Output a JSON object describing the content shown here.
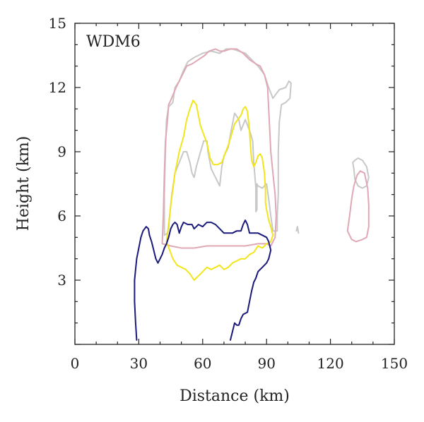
{
  "chart_data": {
    "type": "line",
    "panel_label": "WDM6",
    "xlabel": "Distance (km)",
    "ylabel": "Height (km)",
    "xlim": [
      0,
      150
    ],
    "ylim": [
      0,
      15
    ],
    "xticks": [
      "0",
      "30",
      "60",
      "90",
      "120",
      "150"
    ],
    "yticks": [
      "3",
      "6",
      "9",
      "12",
      "15"
    ],
    "grid": false,
    "legend": "none",
    "series": [
      {
        "color": "#c8c8c8",
        "lines": [
          [
            [
              42,
              5.1
            ],
            [
              42,
              7
            ],
            [
              42.5,
              9
            ],
            [
              43,
              10.5
            ],
            [
              44,
              11.1
            ],
            [
              46,
              11.3
            ],
            [
              47,
              12
            ],
            [
              49,
              12.3
            ],
            [
              51,
              12.8
            ],
            [
              53,
              13.2
            ],
            [
              56,
              13.4
            ],
            [
              60,
              13.6
            ],
            [
              64,
              13.7
            ],
            [
              68,
              13.6
            ],
            [
              71,
              13.8
            ],
            [
              74,
              13.8
            ],
            [
              77,
              13.7
            ],
            [
              80,
              13.6
            ],
            [
              83,
              13.3
            ],
            [
              86,
              13
            ],
            [
              89,
              12.6
            ],
            [
              91,
              12
            ],
            [
              93,
              11.5
            ],
            [
              96,
              11.9
            ],
            [
              99,
              12
            ],
            [
              100.5,
              12.3
            ],
            [
              101.5,
              12.2
            ],
            [
              101,
              11.5
            ],
            [
              99,
              11.3
            ],
            [
              97,
              11.2
            ],
            [
              96,
              10.4
            ],
            [
              95.5,
              9
            ],
            [
              95.5,
              8
            ],
            [
              95.5,
              7
            ],
            [
              95,
              6
            ],
            [
              95,
              5.3
            ],
            [
              93,
              5.3
            ],
            [
              92,
              6
            ],
            [
              91,
              6.8
            ],
            [
              90,
              7.5
            ],
            [
              88,
              7.3
            ],
            [
              86,
              7.4
            ],
            [
              85.5,
              7.5
            ],
            [
              85.5,
              6.3
            ],
            [
              85,
              6.2
            ],
            [
              85,
              7.3
            ],
            [
              84,
              8.5
            ],
            [
              83.5,
              9.5
            ],
            [
              82,
              10
            ],
            [
              80,
              10.5
            ],
            [
              78,
              10
            ],
            [
              77,
              10.5
            ],
            [
              75,
              10.8
            ],
            [
              73,
              9.8
            ],
            [
              72,
              9.2
            ],
            [
              71,
              9
            ],
            [
              70,
              8.8
            ],
            [
              69,
              8.3
            ],
            [
              68,
              7.4
            ],
            [
              66,
              7.8
            ],
            [
              64,
              8.2
            ],
            [
              62.5,
              9
            ],
            [
              62,
              9.5
            ],
            [
              60.5,
              9.5
            ],
            [
              59,
              9
            ],
            [
              57,
              8.3
            ],
            [
              56,
              7.8
            ],
            [
              55,
              8
            ],
            [
              54,
              8.5
            ],
            [
              52.5,
              9
            ],
            [
              51,
              9
            ],
            [
              49,
              8.5
            ],
            [
              47,
              8
            ],
            [
              45.5,
              7
            ],
            [
              44.5,
              6
            ],
            [
              44,
              5.4
            ],
            [
              43.5,
              5.2
            ],
            [
              42,
              5.1
            ]
          ],
          [
            [
              104,
              5.3
            ],
            [
              104.5,
              5.5
            ],
            [
              105,
              5.2
            ]
          ],
          [
            [
              131,
              8.2
            ],
            [
              130.5,
              8.5
            ],
            [
              131.5,
              8.6
            ],
            [
              133,
              8.7
            ],
            [
              135,
              8.6
            ],
            [
              137,
              8.3
            ],
            [
              138,
              7.8
            ],
            [
              137,
              7.4
            ],
            [
              135,
              7.3
            ],
            [
              133,
              7.4
            ],
            [
              131.5,
              7.7
            ],
            [
              131,
              8.2
            ]
          ]
        ]
      },
      {
        "color": "#e0a8b4",
        "lines": [
          [
            [
              41,
              4.7
            ],
            [
              41.5,
              6
            ],
            [
              42,
              8
            ],
            [
              42.5,
              9.5
            ],
            [
              43.5,
              10.5
            ],
            [
              44,
              11.2
            ],
            [
              45,
              11.4
            ],
            [
              47.5,
              12
            ],
            [
              50,
              12.5
            ],
            [
              52.5,
              13
            ],
            [
              55,
              13.1
            ],
            [
              58,
              13.3
            ],
            [
              61,
              13.5
            ],
            [
              63,
              13.7
            ],
            [
              66,
              13.8
            ],
            [
              68,
              13.7
            ],
            [
              70,
              13.7
            ],
            [
              73,
              13.8
            ],
            [
              76,
              13.8
            ],
            [
              79,
              13.6
            ],
            [
              82,
              13.3
            ],
            [
              85,
              13.1
            ],
            [
              87,
              13
            ],
            [
              89,
              12.6
            ],
            [
              90.5,
              12
            ],
            [
              91,
              11
            ],
            [
              91.5,
              10
            ],
            [
              92,
              9
            ],
            [
              93,
              8
            ],
            [
              94,
              7
            ],
            [
              94.5,
              6
            ],
            [
              94,
              5
            ],
            [
              92,
              4.6
            ],
            [
              90,
              4.7
            ],
            [
              86,
              4.7
            ],
            [
              80,
              4.6
            ],
            [
              74,
              4.6
            ],
            [
              68,
              4.6
            ],
            [
              62,
              4.6
            ],
            [
              56,
              4.5
            ],
            [
              50,
              4.5
            ],
            [
              45,
              4.6
            ],
            [
              41,
              4.7
            ]
          ],
          [
            [
              128,
              5.3
            ],
            [
              129,
              6
            ],
            [
              130,
              6.8
            ],
            [
              131,
              7.4
            ],
            [
              132.5,
              7.9
            ],
            [
              134,
              8.1
            ],
            [
              136,
              8
            ],
            [
              137.5,
              7.3
            ],
            [
              138,
              6.5
            ],
            [
              138,
              5.5
            ],
            [
              137,
              5
            ],
            [
              135,
              4.9
            ],
            [
              132,
              4.8
            ],
            [
              130,
              4.9
            ],
            [
              128,
              5.3
            ]
          ]
        ]
      },
      {
        "color": "#f2e51a",
        "lines": [
          [
            [
              44,
              5.6
            ],
            [
              45,
              6.5
            ],
            [
              47,
              8
            ],
            [
              49,
              9
            ],
            [
              51,
              9.7
            ],
            [
              52.5,
              10.5
            ],
            [
              54,
              11
            ],
            [
              55.5,
              11.4
            ],
            [
              57,
              11.2
            ],
            [
              58,
              10.7
            ],
            [
              59,
              10.2
            ],
            [
              60.5,
              9.8
            ],
            [
              62,
              9.4
            ],
            [
              63.5,
              8.7
            ],
            [
              65,
              8.4
            ],
            [
              67,
              8.4
            ],
            [
              69,
              8.5
            ],
            [
              70.5,
              8.9
            ],
            [
              72,
              9.3
            ],
            [
              73.5,
              9.8
            ],
            [
              75,
              10.3
            ],
            [
              76.5,
              10.5
            ],
            [
              78,
              10.7
            ],
            [
              79,
              11
            ],
            [
              80,
              11.1
            ],
            [
              81,
              10.9
            ],
            [
              82,
              10
            ],
            [
              82.5,
              9.2
            ],
            [
              83,
              8.6
            ],
            [
              84,
              8.3
            ],
            [
              85,
              8.5
            ],
            [
              86,
              8.8
            ],
            [
              87,
              8.9
            ],
            [
              88,
              8.7
            ],
            [
              89,
              8
            ],
            [
              89.5,
              7.2
            ],
            [
              89.5,
              6.6
            ],
            [
              90,
              6.3
            ],
            [
              91,
              5.8
            ],
            [
              92,
              5.5
            ],
            [
              93,
              5.1
            ],
            [
              92,
              4.8
            ],
            [
              90,
              4.7
            ],
            [
              88,
              4.5
            ],
            [
              86,
              4.6
            ],
            [
              84,
              4.3
            ],
            [
              82,
              4.2
            ],
            [
              80,
              4
            ],
            [
              78,
              4
            ],
            [
              76,
              3.9
            ],
            [
              74,
              3.8
            ],
            [
              72,
              3.6
            ],
            [
              70,
              3.5
            ],
            [
              68,
              3.7
            ],
            [
              66,
              3.6
            ],
            [
              64,
              3.5
            ],
            [
              62,
              3.6
            ],
            [
              60,
              3.4
            ],
            [
              58,
              3.2
            ],
            [
              56,
              3
            ],
            [
              54,
              3.3
            ],
            [
              52,
              3.5
            ],
            [
              50,
              3.6
            ],
            [
              48,
              3.7
            ],
            [
              46,
              4
            ],
            [
              44.5,
              4.4
            ],
            [
              43,
              4.8
            ],
            [
              44,
              5.6
            ]
          ]
        ]
      },
      {
        "color": "#1a1a7a",
        "lines": [
          [
            [
              29,
              0.2
            ],
            [
              28.5,
              1
            ],
            [
              28,
              2
            ],
            [
              28,
              3
            ],
            [
              28.5,
              3.5
            ],
            [
              29,
              4
            ],
            [
              30,
              4.5
            ],
            [
              31,
              5
            ],
            [
              32,
              5.3
            ],
            [
              33.5,
              5.5
            ],
            [
              34.5,
              5.4
            ],
            [
              35,
              5.1
            ],
            [
              36,
              4.8
            ],
            [
              37,
              4.4
            ],
            [
              38,
              4
            ],
            [
              39,
              3.8
            ],
            [
              40,
              4
            ],
            [
              41,
              4.2
            ],
            [
              42,
              4.5
            ],
            [
              43,
              4.7
            ],
            [
              44,
              5
            ],
            [
              44.5,
              5.2
            ],
            [
              45,
              5.4
            ],
            [
              46,
              5.6
            ],
            [
              47,
              5.7
            ],
            [
              48,
              5.6
            ],
            [
              49,
              5.2
            ],
            [
              50,
              5.5
            ],
            [
              51,
              5.7
            ],
            [
              53,
              5.6
            ],
            [
              55,
              5.6
            ],
            [
              56,
              5.4
            ],
            [
              57,
              5.5
            ],
            [
              58,
              5.6
            ],
            [
              60,
              5.5
            ],
            [
              61,
              5.6
            ],
            [
              62,
              5.7
            ],
            [
              64,
              5.7
            ],
            [
              66,
              5.6
            ],
            [
              68,
              5.4
            ],
            [
              70,
              5.2
            ],
            [
              72,
              5.2
            ],
            [
              74,
              5.2
            ],
            [
              76,
              5.3
            ],
            [
              78,
              5.3
            ],
            [
              79,
              5.6
            ],
            [
              80,
              5.8
            ],
            [
              81,
              5.6
            ],
            [
              82,
              5.2
            ],
            [
              84,
              5.2
            ],
            [
              86,
              5.2
            ],
            [
              88,
              5.1
            ],
            [
              90,
              5
            ],
            [
              91,
              4.8
            ],
            [
              92,
              4.4
            ],
            [
              91,
              4
            ],
            [
              90,
              3.8
            ],
            [
              88,
              3.6
            ],
            [
              86,
              3.4
            ],
            [
              85,
              3.1
            ],
            [
              84,
              2.9
            ],
            [
              83,
              2.5
            ],
            [
              82,
              2
            ],
            [
              81,
              1.5
            ],
            [
              79,
              1.4
            ],
            [
              78,
              1.2
            ],
            [
              77,
              0.9
            ],
            [
              76,
              0.9
            ],
            [
              75,
              1
            ],
            [
              74,
              0.6
            ],
            [
              73,
              0.2
            ]
          ]
        ]
      }
    ]
  }
}
